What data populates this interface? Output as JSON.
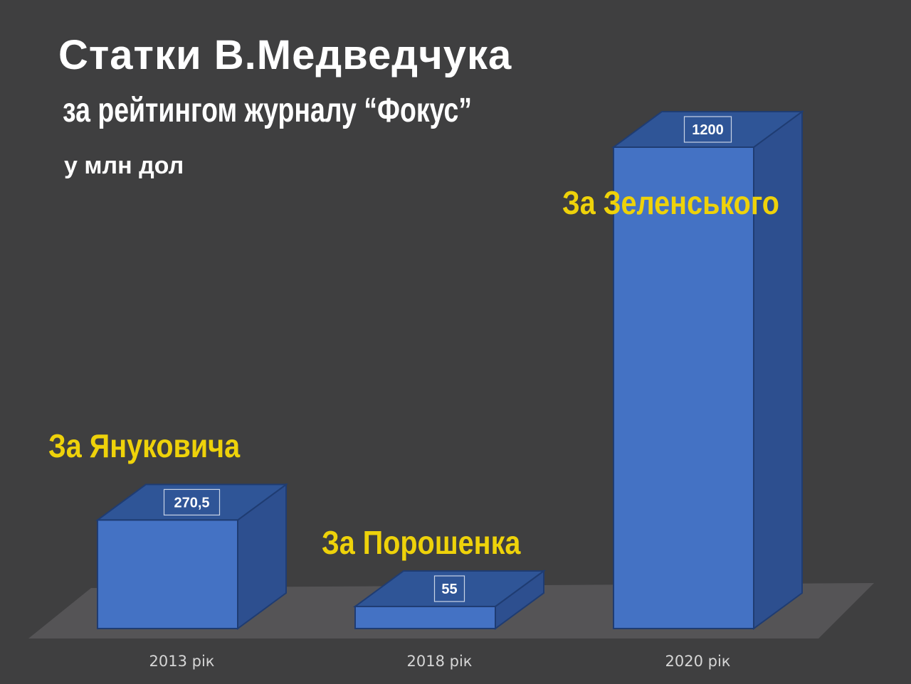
{
  "header": {
    "title": "Статки В.Медведчука",
    "subtitle": "за рейтингом журналу “Фокус”",
    "unit": "у млн дол"
  },
  "chart_data": {
    "type": "bar",
    "style": "3d",
    "categories": [
      "2013 рік",
      "2018 рік",
      "2020 рік"
    ],
    "values": [
      270.5,
      55,
      1200
    ],
    "value_labels": [
      "270,5",
      "55",
      "1200"
    ],
    "annotations": [
      "За Януковича",
      "За Порошенка",
      "За Зеленського"
    ],
    "title": "Статки В.Медведчука",
    "subtitle": "за рейтингом журналу “Фокус”",
    "ylabel": "у млн дол",
    "ylim": [
      0,
      1200
    ],
    "grid": false,
    "legend": "none",
    "colors": {
      "background": "#3f3f40",
      "floor": "#555456",
      "bar_front": "#4472c4",
      "bar_top": "#2f5597",
      "bar_side": "#2d4f8f",
      "edge": "#1f3c72",
      "annotation": "#eed20a",
      "tick_label": "#d6d6d6"
    }
  }
}
